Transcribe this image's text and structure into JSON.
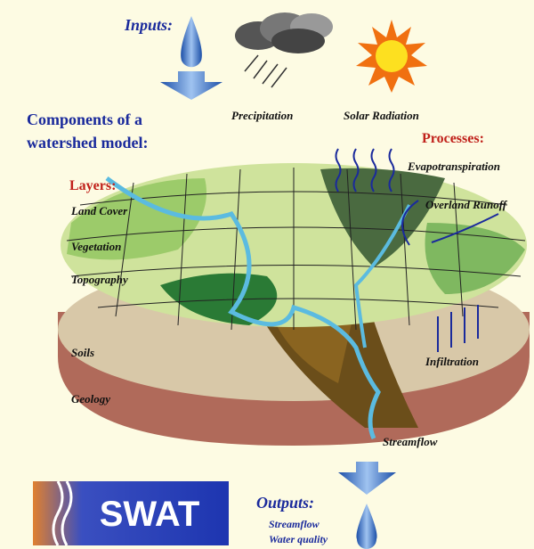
{
  "inputs": {
    "title": "Inputs:",
    "items": [
      "Precipitation",
      "Solar Radiation"
    ]
  },
  "components": {
    "title_lines": [
      "Components of a",
      "watershed model:"
    ]
  },
  "layers": {
    "title": "Layers:",
    "items": [
      "Land Cover",
      "Vegetation",
      "Topography",
      "Soils",
      "Geology"
    ]
  },
  "processes": {
    "title": "Processes:",
    "items": [
      "Evapotranspiration",
      "Overland Runoff",
      "Infiltration",
      "Streamflow"
    ]
  },
  "logo": "SWAT",
  "outputs": {
    "title": "Outputs:",
    "items": [
      "Streamflow",
      "Water quality"
    ]
  }
}
